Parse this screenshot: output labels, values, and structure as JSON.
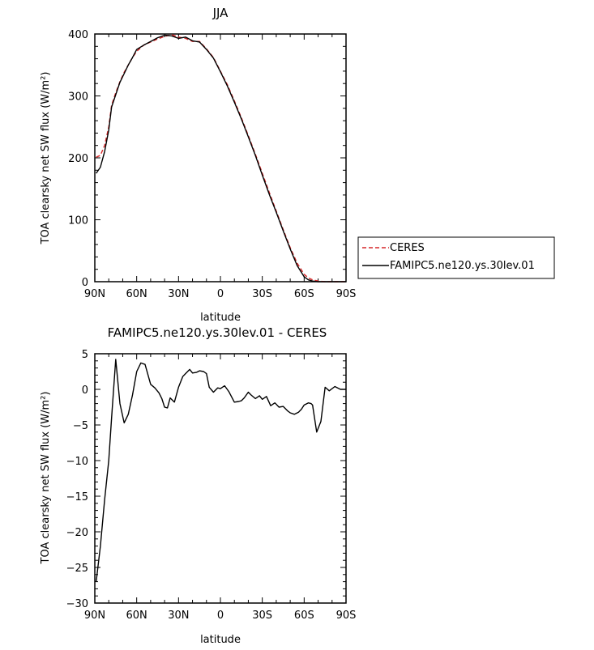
{
  "chart_data": [
    {
      "type": "line",
      "title": "JJA",
      "xlabel": "latitude",
      "ylabel": "TOA clearsky net SW flux (W/m²)",
      "xlim": [
        90,
        -90
      ],
      "ylim": [
        0,
        400
      ],
      "x_ticks": [
        "90N",
        "60N",
        "30N",
        "0",
        "30S",
        "60S",
        "90S"
      ],
      "y_ticks": [
        "0",
        "100",
        "200",
        "300",
        "400"
      ],
      "legend": {
        "position": "right",
        "entries": [
          "CERES",
          "FAMIPC5.ne120.ys.30lev.01"
        ]
      },
      "series": [
        {
          "name": "CERES",
          "color": "#d62728",
          "style": "dashed",
          "x": [
            89,
            86,
            83,
            80,
            78,
            75,
            72,
            69,
            66,
            63,
            60,
            55,
            50,
            45,
            40,
            35,
            30,
            25,
            20,
            15,
            10,
            5,
            0,
            -5,
            -10,
            -15,
            -20,
            -25,
            -30,
            -35,
            -40,
            -45,
            -50,
            -55,
            -60,
            -63,
            -66,
            -70,
            -75,
            -80,
            -85,
            -90
          ],
          "y": [
            201,
            204,
            220,
            250,
            285,
            305,
            323,
            338,
            350,
            362,
            372,
            382,
            387,
            392,
            396,
            399,
            395,
            393,
            388,
            388,
            376,
            362,
            340,
            318,
            292,
            265,
            236,
            206,
            175,
            144,
            114,
            84,
            55,
            30,
            12,
            6,
            3,
            1,
            0,
            0,
            0,
            0
          ]
        },
        {
          "name": "FAMIPC5.ne120.ys.30lev.01",
          "color": "#000000",
          "style": "solid",
          "x": [
            89,
            86,
            83,
            80,
            78,
            75,
            72,
            69,
            66,
            63,
            60,
            55,
            50,
            45,
            40,
            35,
            30,
            25,
            20,
            15,
            10,
            5,
            0,
            -5,
            -10,
            -15,
            -20,
            -25,
            -30,
            -35,
            -40,
            -45,
            -50,
            -55,
            -60,
            -63,
            -66,
            -70,
            -75,
            -80,
            -85,
            -90
          ],
          "y": [
            175,
            185,
            210,
            245,
            282,
            302,
            322,
            336,
            350,
            362,
            375,
            382,
            388,
            394,
            398,
            397,
            393,
            395,
            389,
            387,
            375,
            361,
            339,
            316,
            290,
            263,
            234,
            204,
            172,
            141,
            112,
            82,
            53,
            26,
            8,
            3,
            1,
            0,
            0,
            0,
            0,
            0
          ]
        }
      ]
    },
    {
      "type": "line",
      "title": "FAMIPC5.ne120.ys.30lev.01 - CERES",
      "xlabel": "latitude",
      "ylabel": "TOA clearsky net SW flux (W/m²)",
      "xlim": [
        90,
        -90
      ],
      "ylim": [
        -30,
        5
      ],
      "x_ticks": [
        "90N",
        "60N",
        "30N",
        "0",
        "30S",
        "60S",
        "90S"
      ],
      "y_ticks": [
        "5",
        "0",
        "-5",
        "-10",
        "-15",
        "-20",
        "-25",
        "-30"
      ],
      "series": [
        {
          "color": "#000000",
          "style": "solid",
          "x": [
            89,
            86,
            83,
            80,
            78,
            75,
            72,
            69,
            66,
            63,
            60,
            57,
            54,
            50,
            47,
            44,
            42,
            40,
            38,
            36,
            33,
            30,
            27,
            25,
            22,
            20,
            17,
            15,
            12,
            10,
            8,
            5,
            2,
            0,
            -3,
            -6,
            -10,
            -13,
            -15,
            -17,
            -20,
            -22,
            -25,
            -28,
            -30,
            -33,
            -36,
            -39,
            -42,
            -45,
            -48,
            -50,
            -53,
            -56,
            -58,
            -60,
            -62,
            -63,
            -65,
            -66,
            -69,
            -72,
            -75,
            -78,
            -82,
            -86,
            -90
          ],
          "y": [
            -27,
            -22,
            -15.5,
            -10,
            -4,
            4.2,
            -2,
            -4.7,
            -3.5,
            -0.8,
            2.5,
            3.7,
            3.5,
            0.7,
            0.2,
            -0.5,
            -1.3,
            -2.5,
            -2.6,
            -1.2,
            -1.8,
            0.3,
            1.8,
            2.2,
            2.8,
            2.3,
            2.4,
            2.6,
            2.5,
            2.2,
            0.3,
            -0.4,
            0.2,
            0.1,
            0.5,
            -0.3,
            -1.8,
            -1.7,
            -1.6,
            -1.2,
            -0.4,
            -0.8,
            -1.3,
            -0.9,
            -1.4,
            -1.0,
            -2.3,
            -1.9,
            -2.5,
            -2.4,
            -3.0,
            -3.3,
            -3.5,
            -3.2,
            -2.8,
            -2.2,
            -2.0,
            -1.9,
            -2.0,
            -2.2,
            -6,
            -4.5,
            0.3,
            -0.2,
            0.4,
            0,
            0
          ]
        }
      ]
    }
  ]
}
